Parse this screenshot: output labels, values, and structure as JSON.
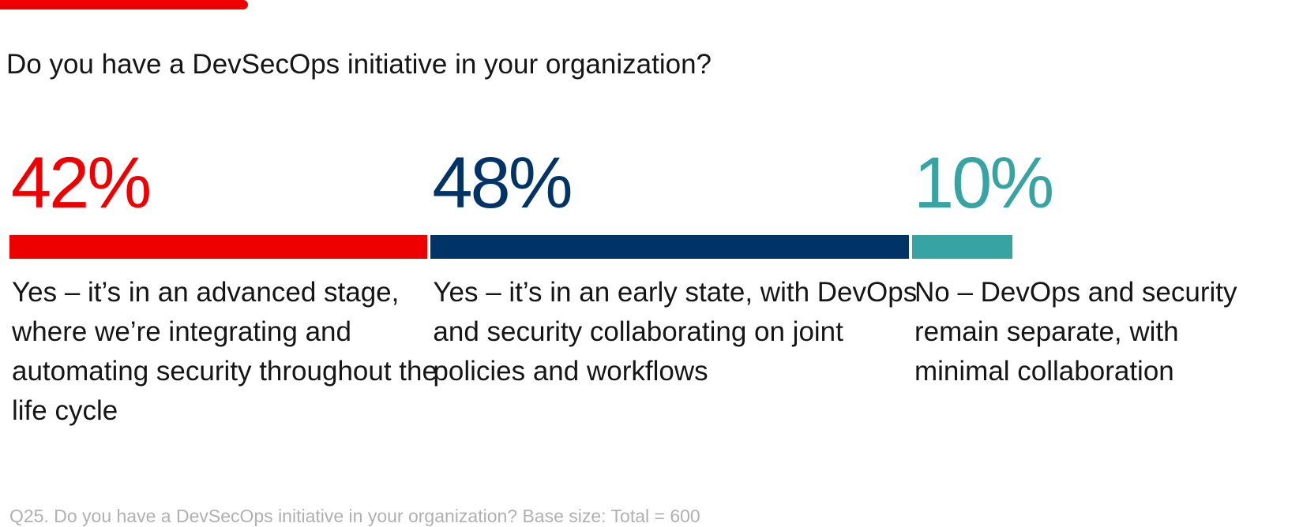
{
  "title": "Do you have a DevSecOps initiative in your organization?",
  "footnote": "Q25. Do you have a DevSecOps initiative in your organization? Base size: Total = 600",
  "colors": {
    "accent": "#ee0000",
    "title_text": "#151515",
    "footnote_text": "#b0b0b0"
  },
  "chart_data": {
    "type": "bar",
    "orientation": "horizontal-stacked",
    "title": "Do you have a DevSecOps initiative in your organization?",
    "unit": "%",
    "categories": [
      "Yes – it’s in an advanced stage, where we’re integrating and automating security throughout the life cycle",
      "Yes – it’s in an early state, with DevOps and security collaborating on joint policies and workflows",
      "No – DevOps and security remain separate, with minimal collaboration"
    ],
    "values": [
      42,
      48,
      10
    ],
    "value_labels": [
      "42%",
      "48%",
      "10%"
    ],
    "colors": [
      "#ee0000",
      "#003366",
      "#37a3a3"
    ],
    "total": 100
  }
}
